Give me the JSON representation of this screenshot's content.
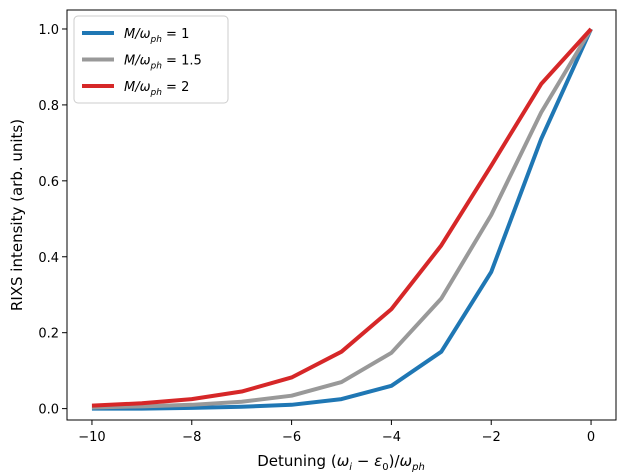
{
  "chart_data": {
    "type": "line",
    "title": "",
    "xlabel": "Detuning (ω_i − ε_0)/ω_ph",
    "xlabel_parts": {
      "prefix": "Detuning (",
      "omega": "ω",
      "omega_sub": "i",
      "minus": " − ",
      "eps": "ε",
      "eps_sub": "0",
      "mid": ")/",
      "omega2": "ω",
      "omega2_sub": "ph"
    },
    "ylabel": "RIXS intensity (arb. units)",
    "xlim": [
      -10.5,
      0.5
    ],
    "ylim": [
      -0.03,
      1.05
    ],
    "xticks": [
      -10,
      -8,
      -6,
      -4,
      -2,
      0
    ],
    "xtick_labels": [
      "−10",
      "−8",
      "−6",
      "−4",
      "−2",
      "0"
    ],
    "yticks": [
      0.0,
      0.2,
      0.4,
      0.6,
      0.8,
      1.0
    ],
    "ytick_labels": [
      "0.0",
      "0.2",
      "0.4",
      "0.6",
      "0.8",
      "1.0"
    ],
    "grid": false,
    "legend_position": "top-left",
    "x": [
      -10,
      -9,
      -8,
      -7,
      -6,
      -5,
      -4,
      -3,
      -2,
      -1,
      0
    ],
    "series": [
      {
        "name": "M/ω_ph = 1",
        "name_main": "M/ω",
        "name_sub": "ph",
        "name_value": " = 1",
        "color": "#1f77b4",
        "values": [
          0.0,
          0.0,
          0.002,
          0.005,
          0.01,
          0.025,
          0.06,
          0.15,
          0.36,
          0.71,
          1.0
        ]
      },
      {
        "name": "M/ω_ph = 1.5",
        "name_main": "M/ω",
        "name_sub": "ph",
        "name_value": " = 1.5",
        "color": "#999999",
        "values": [
          0.003,
          0.006,
          0.01,
          0.018,
          0.034,
          0.07,
          0.147,
          0.29,
          0.51,
          0.78,
          1.0
        ]
      },
      {
        "name": "M/ω_ph = 2",
        "name_main": "M/ω",
        "name_sub": "ph",
        "name_value": " = 2",
        "color": "#d62728",
        "values": [
          0.008,
          0.014,
          0.025,
          0.045,
          0.082,
          0.15,
          0.262,
          0.43,
          0.64,
          0.855,
          1.0
        ]
      }
    ]
  }
}
